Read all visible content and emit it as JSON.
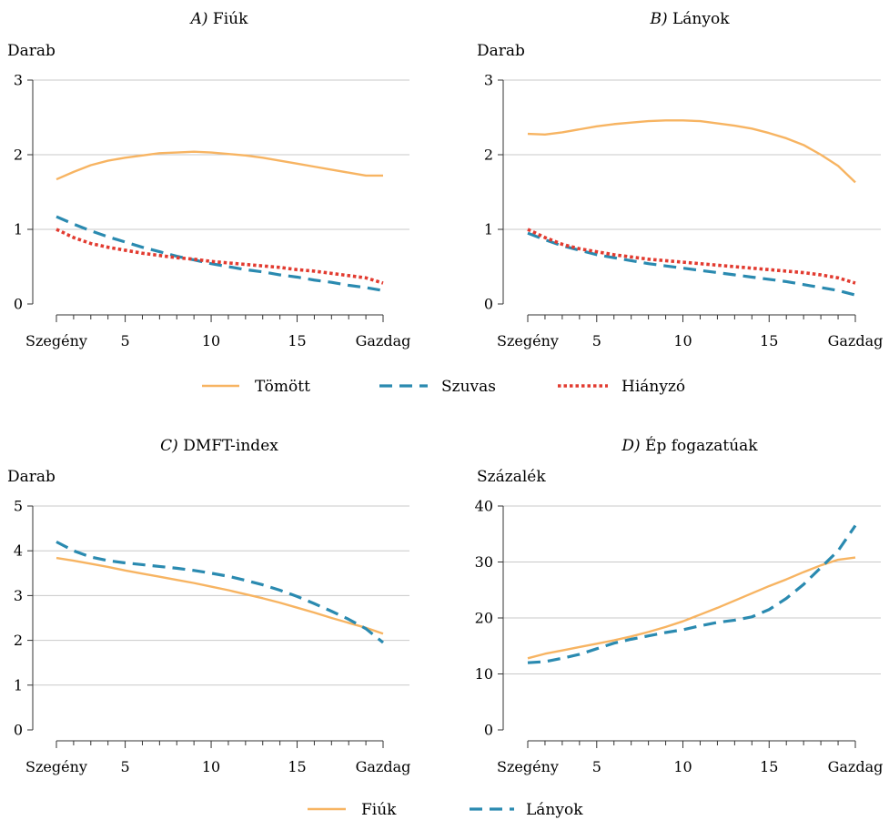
{
  "colors": {
    "tomott": "#F7B462",
    "szuvas": "#2A8AB0",
    "hianyzo": "#E23B30",
    "fiuk": "#F7B462",
    "lanyok": "#2A8AB0"
  },
  "legend_top": [
    {
      "key": "tomott",
      "label": "Tömött",
      "dash": "solid"
    },
    {
      "key": "szuvas",
      "label": "Szuvas",
      "dash": "dashed"
    },
    {
      "key": "hianyzo",
      "label": "Hiányzó",
      "dash": "dotted"
    }
  ],
  "legend_bottom": [
    {
      "key": "fiuk",
      "label": "Fiúk",
      "dash": "solid"
    },
    {
      "key": "lanyok",
      "label": "Lányok",
      "dash": "dashed"
    }
  ],
  "chart_data": [
    {
      "id": "A",
      "type": "line",
      "title_letter": "A)",
      "title_text": "Fiúk",
      "ylabel": "Darab",
      "ylim": [
        0,
        3
      ],
      "yticks": [
        0,
        1,
        2,
        3
      ],
      "xlim": [
        1,
        20
      ],
      "xticks": [
        {
          "x": 1,
          "label": "Szegény"
        },
        {
          "x": 5,
          "label": "5"
        },
        {
          "x": 10,
          "label": "10"
        },
        {
          "x": 15,
          "label": "15"
        },
        {
          "x": 20,
          "label": "Gazdag"
        }
      ],
      "grid": true,
      "series": [
        {
          "key": "tomott",
          "name": "Tömött",
          "x": [
            1,
            2,
            3,
            4,
            5,
            6,
            7,
            8,
            9,
            10,
            11,
            12,
            13,
            14,
            15,
            16,
            17,
            18,
            19,
            20
          ],
          "y": [
            1.67,
            1.77,
            1.86,
            1.92,
            1.96,
            1.99,
            2.02,
            2.03,
            2.04,
            2.03,
            2.01,
            1.99,
            1.96,
            1.92,
            1.88,
            1.84,
            1.8,
            1.76,
            1.72,
            1.72
          ]
        },
        {
          "key": "szuvas",
          "name": "Szuvas",
          "x": [
            1,
            2,
            3,
            4,
            5,
            6,
            7,
            8,
            9,
            10,
            11,
            12,
            13,
            14,
            15,
            16,
            17,
            18,
            19,
            20
          ],
          "y": [
            1.17,
            1.07,
            0.98,
            0.9,
            0.83,
            0.76,
            0.7,
            0.64,
            0.59,
            0.54,
            0.5,
            0.46,
            0.43,
            0.39,
            0.36,
            0.32,
            0.29,
            0.25,
            0.22,
            0.18
          ]
        },
        {
          "key": "hianyzo",
          "name": "Hiányzó",
          "x": [
            1,
            2,
            3,
            4,
            5,
            6,
            7,
            8,
            9,
            10,
            11,
            12,
            13,
            14,
            15,
            16,
            17,
            18,
            19,
            20
          ],
          "y": [
            1.0,
            0.89,
            0.81,
            0.76,
            0.72,
            0.68,
            0.65,
            0.62,
            0.6,
            0.57,
            0.55,
            0.53,
            0.51,
            0.49,
            0.46,
            0.44,
            0.41,
            0.38,
            0.35,
            0.28
          ]
        }
      ]
    },
    {
      "id": "B",
      "type": "line",
      "title_letter": "B)",
      "title_text": "Lányok",
      "ylabel": "Darab",
      "ylim": [
        0,
        3
      ],
      "yticks": [
        0,
        1,
        2,
        3
      ],
      "xlim": [
        1,
        20
      ],
      "xticks": [
        {
          "x": 1,
          "label": "Szegény"
        },
        {
          "x": 5,
          "label": "5"
        },
        {
          "x": 10,
          "label": "10"
        },
        {
          "x": 15,
          "label": "15"
        },
        {
          "x": 20,
          "label": "Gazdag"
        }
      ],
      "grid": true,
      "series": [
        {
          "key": "tomott",
          "name": "Tömött",
          "x": [
            1,
            2,
            3,
            4,
            5,
            6,
            7,
            8,
            9,
            10,
            11,
            12,
            13,
            14,
            15,
            16,
            17,
            18,
            19,
            20
          ],
          "y": [
            2.28,
            2.27,
            2.3,
            2.34,
            2.38,
            2.41,
            2.43,
            2.45,
            2.46,
            2.46,
            2.45,
            2.42,
            2.39,
            2.35,
            2.29,
            2.22,
            2.13,
            2.0,
            1.85,
            1.63
          ]
        },
        {
          "key": "szuvas",
          "name": "Szuvas",
          "x": [
            1,
            2,
            3,
            4,
            5,
            6,
            7,
            8,
            9,
            10,
            11,
            12,
            13,
            14,
            15,
            16,
            17,
            18,
            19,
            20
          ],
          "y": [
            0.95,
            0.86,
            0.78,
            0.72,
            0.66,
            0.62,
            0.58,
            0.54,
            0.51,
            0.48,
            0.45,
            0.42,
            0.39,
            0.36,
            0.33,
            0.3,
            0.26,
            0.22,
            0.18,
            0.12
          ]
        },
        {
          "key": "hianyzo",
          "name": "Hiányzó",
          "x": [
            1,
            2,
            3,
            4,
            5,
            6,
            7,
            8,
            9,
            10,
            11,
            12,
            13,
            14,
            15,
            16,
            17,
            18,
            19,
            20
          ],
          "y": [
            1.0,
            0.89,
            0.8,
            0.74,
            0.7,
            0.66,
            0.63,
            0.6,
            0.58,
            0.56,
            0.54,
            0.52,
            0.5,
            0.48,
            0.46,
            0.44,
            0.42,
            0.39,
            0.35,
            0.28
          ]
        }
      ]
    },
    {
      "id": "C",
      "type": "line",
      "title_letter": "C)",
      "title_text": "DMFT-index",
      "ylabel": "Darab",
      "ylim": [
        0,
        5
      ],
      "yticks": [
        0,
        1,
        2,
        3,
        4,
        5
      ],
      "xlim": [
        1,
        20
      ],
      "xticks": [
        {
          "x": 1,
          "label": "Szegény"
        },
        {
          "x": 5,
          "label": "5"
        },
        {
          "x": 10,
          "label": "10"
        },
        {
          "x": 15,
          "label": "15"
        },
        {
          "x": 20,
          "label": "Gazdag"
        }
      ],
      "grid": true,
      "series": [
        {
          "key": "fiuk",
          "name": "Fiúk",
          "x": [
            1,
            2,
            3,
            4,
            5,
            6,
            7,
            8,
            9,
            10,
            11,
            12,
            13,
            14,
            15,
            16,
            17,
            18,
            19,
            20
          ],
          "y": [
            3.84,
            3.78,
            3.71,
            3.64,
            3.56,
            3.49,
            3.42,
            3.35,
            3.28,
            3.2,
            3.12,
            3.03,
            2.94,
            2.84,
            2.73,
            2.62,
            2.5,
            2.39,
            2.28,
            2.15
          ]
        },
        {
          "key": "lanyok",
          "name": "Lányok",
          "x": [
            1,
            2,
            3,
            4,
            5,
            6,
            7,
            8,
            9,
            10,
            11,
            12,
            13,
            14,
            15,
            16,
            17,
            18,
            19,
            20
          ],
          "y": [
            4.2,
            4.0,
            3.86,
            3.78,
            3.73,
            3.69,
            3.65,
            3.61,
            3.56,
            3.5,
            3.43,
            3.34,
            3.24,
            3.12,
            2.98,
            2.82,
            2.65,
            2.47,
            2.26,
            1.95
          ]
        }
      ]
    },
    {
      "id": "D",
      "type": "line",
      "title_letter": "D)",
      "title_text": "Ép fogazatúak",
      "ylabel": "Százalék",
      "ylim": [
        0,
        40
      ],
      "yticks": [
        0,
        10,
        20,
        30,
        40
      ],
      "xlim": [
        1,
        20
      ],
      "xticks": [
        {
          "x": 1,
          "label": "Szegény"
        },
        {
          "x": 5,
          "label": "5"
        },
        {
          "x": 10,
          "label": "10"
        },
        {
          "x": 15,
          "label": "15"
        },
        {
          "x": 20,
          "label": "Gazdag"
        }
      ],
      "grid": true,
      "series": [
        {
          "key": "fiuk",
          "name": "Fiúk",
          "x": [
            1,
            2,
            3,
            4,
            5,
            6,
            7,
            8,
            9,
            10,
            11,
            12,
            13,
            14,
            15,
            16,
            17,
            18,
            19,
            20
          ],
          "y": [
            12.8,
            13.6,
            14.2,
            14.8,
            15.4,
            16.0,
            16.7,
            17.5,
            18.4,
            19.4,
            20.6,
            21.8,
            23.1,
            24.4,
            25.7,
            26.9,
            28.2,
            29.4,
            30.4,
            30.8
          ]
        },
        {
          "key": "lanyok",
          "name": "Lányok",
          "x": [
            1,
            2,
            3,
            4,
            5,
            6,
            7,
            8,
            9,
            10,
            11,
            12,
            13,
            14,
            15,
            16,
            17,
            18,
            19,
            20
          ],
          "y": [
            12.0,
            12.2,
            12.8,
            13.5,
            14.5,
            15.5,
            16.2,
            16.8,
            17.4,
            17.9,
            18.6,
            19.2,
            19.6,
            20.2,
            21.5,
            23.5,
            26.0,
            29.0,
            32.0,
            36.5
          ]
        }
      ]
    }
  ]
}
